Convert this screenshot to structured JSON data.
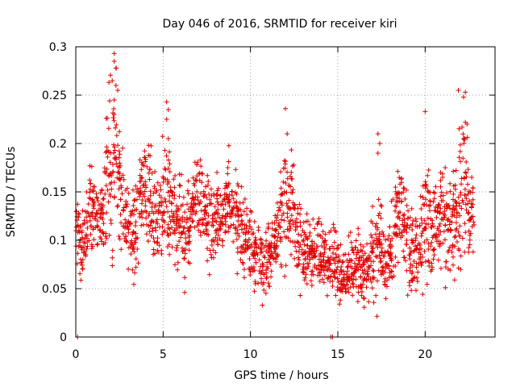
{
  "chart_data": {
    "type": "scatter",
    "title": "Day 046 of 2016, SRMTID for receiver kiri",
    "xlabel": "GPS time / hours",
    "ylabel": "SRMTID / TECUs",
    "xlim": [
      0,
      24
    ],
    "ylim": [
      0,
      0.3
    ],
    "x_ticks": [
      0,
      5,
      10,
      15,
      20
    ],
    "x_tick_labels": [
      "0",
      "5",
      "10",
      "15",
      "20"
    ],
    "y_ticks": [
      0,
      0.05,
      0.1,
      0.15,
      0.2,
      0.25,
      0.3
    ],
    "y_tick_labels": [
      "0",
      "0.05",
      "0.1",
      "0.15",
      "0.2",
      "0.25",
      "0.3"
    ],
    "grid": true,
    "marker": "plus",
    "color": "#e00000",
    "series": [
      {
        "x": [
          0.0,
          0.3,
          0.6,
          0.9,
          1.2,
          1.5,
          1.8,
          2.1,
          2.4,
          2.7,
          3.0,
          3.3,
          3.6,
          3.9,
          4.2,
          4.5,
          4.8,
          5.1,
          5.4,
          5.7,
          6.0,
          6.3,
          6.6,
          6.9,
          7.2,
          7.5,
          7.8,
          8.1,
          8.4,
          8.7,
          9.0,
          9.3,
          9.6,
          9.9,
          10.2,
          10.5,
          10.8,
          11.1,
          11.4,
          11.7,
          12.0,
          12.3,
          12.6,
          12.9,
          13.2,
          13.5,
          13.8,
          14.1,
          14.4,
          14.7,
          15.0,
          15.3,
          15.6,
          15.9,
          16.2,
          16.5,
          16.8,
          17.1,
          17.4,
          17.7,
          18.0,
          18.3,
          18.6,
          18.9,
          19.2,
          19.5,
          19.8,
          20.1,
          20.4,
          20.7,
          21.0,
          21.3,
          21.6,
          21.9,
          22.2,
          22.5,
          22.8
        ],
        "y": [
          0.12,
          0.09,
          0.11,
          0.14,
          0.13,
          0.12,
          0.17,
          0.19,
          0.18,
          0.14,
          0.11,
          0.1,
          0.13,
          0.16,
          0.15,
          0.13,
          0.12,
          0.15,
          0.14,
          0.11,
          0.12,
          0.1,
          0.13,
          0.15,
          0.14,
          0.12,
          0.11,
          0.13,
          0.12,
          0.14,
          0.13,
          0.12,
          0.11,
          0.1,
          0.09,
          0.08,
          0.07,
          0.09,
          0.1,
          0.12,
          0.13,
          0.14,
          0.11,
          0.1,
          0.09,
          0.08,
          0.09,
          0.08,
          0.07,
          0.09,
          0.07,
          0.06,
          0.07,
          0.08,
          0.07,
          0.06,
          0.07,
          0.08,
          0.09,
          0.07,
          0.08,
          0.12,
          0.13,
          0.11,
          0.08,
          0.09,
          0.1,
          0.13,
          0.11,
          0.12,
          0.13,
          0.11,
          0.12,
          0.14,
          0.16,
          0.13,
          0.12
        ],
        "spread": [
          0.04,
          0.03,
          0.03,
          0.04,
          0.04,
          0.04,
          0.07,
          0.08,
          0.06,
          0.04,
          0.04,
          0.04,
          0.04,
          0.04,
          0.05,
          0.04,
          0.04,
          0.06,
          0.04,
          0.04,
          0.04,
          0.04,
          0.04,
          0.04,
          0.04,
          0.04,
          0.04,
          0.04,
          0.04,
          0.04,
          0.04,
          0.04,
          0.04,
          0.03,
          0.03,
          0.03,
          0.04,
          0.03,
          0.03,
          0.04,
          0.06,
          0.05,
          0.04,
          0.04,
          0.03,
          0.03,
          0.03,
          0.03,
          0.03,
          0.03,
          0.03,
          0.03,
          0.03,
          0.03,
          0.03,
          0.03,
          0.03,
          0.06,
          0.05,
          0.03,
          0.03,
          0.04,
          0.04,
          0.04,
          0.04,
          0.04,
          0.05,
          0.06,
          0.04,
          0.04,
          0.05,
          0.05,
          0.05,
          0.06,
          0.06,
          0.05,
          0.04
        ]
      }
    ],
    "peaks": {
      "x": [
        2.2,
        2.2,
        2.3,
        2.3,
        2.2,
        2.4,
        2.2,
        5.2,
        5.3,
        5.2,
        5.3,
        12.0,
        12.1,
        17.3,
        17.4,
        17.3,
        20.0,
        21.9,
        22.3,
        22.2,
        22.4,
        22.3,
        22.2,
        0.1,
        14.7,
        14.6
      ],
      "y": [
        0.293,
        0.285,
        0.278,
        0.26,
        0.245,
        0.255,
        0.23,
        0.243,
        0.235,
        0.225,
        0.205,
        0.236,
        0.21,
        0.21,
        0.2,
        0.19,
        0.233,
        0.255,
        0.253,
        0.248,
        0.22,
        0.222,
        0.205,
        0.0,
        0.0,
        0.0
      ]
    }
  }
}
